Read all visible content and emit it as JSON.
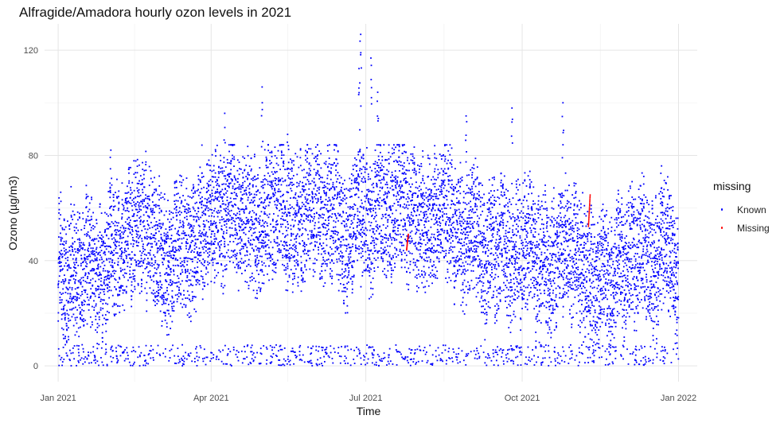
{
  "chart_data": {
    "type": "scatter",
    "title": "Alfragide/Amadora hourly ozon levels in 2021",
    "xlabel": "Time",
    "ylabel": "Ozono (µg/m3)",
    "xlim": [
      "2020-12-24",
      "2022-01-12"
    ],
    "ylim": [
      -6,
      130
    ],
    "x_ticks": [
      {
        "date": "2021-01-01",
        "label": "Jan 2021"
      },
      {
        "date": "2021-04-01",
        "label": "Apr 2021"
      },
      {
        "date": "2021-07-01",
        "label": "Jul 2021"
      },
      {
        "date": "2021-10-01",
        "label": "Oct 2021"
      },
      {
        "date": "2022-01-01",
        "label": "Jan 2022"
      }
    ],
    "x_minor_ticks": [
      "2021-02-15",
      "2021-05-16",
      "2021-08-16",
      "2021-11-16"
    ],
    "y_ticks": [
      0,
      40,
      80,
      120
    ],
    "y_minor_ticks": [
      20,
      60,
      100
    ],
    "grid": true,
    "legend": {
      "title": "missing",
      "position": "right"
    },
    "series": [
      {
        "name": "Known",
        "color": "#0000ff",
        "time_range": [
          "2021-01-01 00:00",
          "2021-12-31 23:00"
        ],
        "interval": "hourly",
        "value_range": [
          0,
          126
        ],
        "highlights": [
          {
            "x": "2021-06-28",
            "y": 126
          },
          {
            "x": "2021-07-04",
            "y": 117
          },
          {
            "x": "2021-06-27",
            "y": 113
          },
          {
            "x": "2021-05-01",
            "y": 106
          },
          {
            "x": "2021-07-08",
            "y": 104
          },
          {
            "x": "2021-10-25",
            "y": 100
          },
          {
            "x": "2021-09-25",
            "y": 98
          },
          {
            "x": "2021-04-09",
            "y": 96
          },
          {
            "x": "2021-08-29",
            "y": 95
          },
          {
            "x": "2021-02-01",
            "y": 82
          },
          {
            "x": "2021-05-16",
            "y": 88
          },
          {
            "x": "2021-12-22",
            "y": 76
          }
        ]
      },
      {
        "name": "Missing",
        "color": "#ff0000",
        "segments": [
          {
            "from": "2021-07-25",
            "to": "2021-07-26",
            "y_from": 44,
            "y_to": 50
          },
          {
            "from": "2021-11-09",
            "to": "2021-11-10",
            "y_from": 53,
            "y_to": 65
          }
        ]
      }
    ]
  }
}
